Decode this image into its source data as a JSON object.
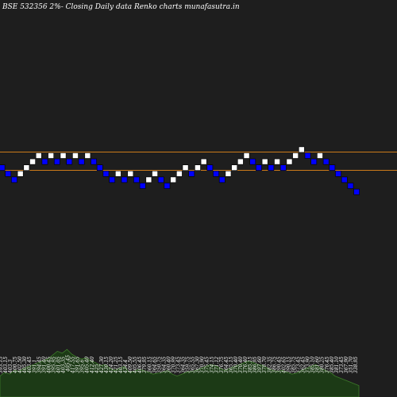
{
  "title": "BSE 532356  2%-  Closing Daily data  Renko  charts munafasutra.in",
  "colors": {
    "background": "#1e1e1e",
    "up_brick": "#ffffff",
    "down_brick": "#0000ff",
    "brick_border": "#000000",
    "level_line": "#cc7a1a",
    "volume_fill": "#1c3a16",
    "volume_stroke": "#3d7a2a",
    "text": "#ffffff"
  },
  "chart_data": {
    "type": "renko",
    "title": "BSE 532356  2%-  Closing Daily data  Renko  charts munafasutra.in",
    "brick_size": "2%",
    "levels": [
      17,
      22
    ],
    "bricks": [
      {
        "dir": "down",
        "level": 16
      },
      {
        "dir": "down",
        "level": 15
      },
      {
        "dir": "down",
        "level": 14
      },
      {
        "dir": "up",
        "level": 15
      },
      {
        "dir": "up",
        "level": 16
      },
      {
        "dir": "up",
        "level": 17
      },
      {
        "dir": "up",
        "level": 18
      },
      {
        "dir": "down",
        "level": 17
      },
      {
        "dir": "up",
        "level": 18
      },
      {
        "dir": "down",
        "level": 17
      },
      {
        "dir": "up",
        "level": 18
      },
      {
        "dir": "down",
        "level": 17
      },
      {
        "dir": "up",
        "level": 18
      },
      {
        "dir": "down",
        "level": 17
      },
      {
        "dir": "up",
        "level": 18
      },
      {
        "dir": "down",
        "level": 17
      },
      {
        "dir": "down",
        "level": 16
      },
      {
        "dir": "down",
        "level": 15
      },
      {
        "dir": "down",
        "level": 14
      },
      {
        "dir": "up",
        "level": 15
      },
      {
        "dir": "down",
        "level": 14
      },
      {
        "dir": "up",
        "level": 15
      },
      {
        "dir": "down",
        "level": 14
      },
      {
        "dir": "down",
        "level": 13
      },
      {
        "dir": "up",
        "level": 14
      },
      {
        "dir": "up",
        "level": 15
      },
      {
        "dir": "down",
        "level": 14
      },
      {
        "dir": "down",
        "level": 13
      },
      {
        "dir": "up",
        "level": 14
      },
      {
        "dir": "up",
        "level": 15
      },
      {
        "dir": "up",
        "level": 16
      },
      {
        "dir": "down",
        "level": 15
      },
      {
        "dir": "up",
        "level": 16
      },
      {
        "dir": "up",
        "level": 17
      },
      {
        "dir": "down",
        "level": 16
      },
      {
        "dir": "down",
        "level": 15
      },
      {
        "dir": "down",
        "level": 14
      },
      {
        "dir": "up",
        "level": 15
      },
      {
        "dir": "up",
        "level": 16
      },
      {
        "dir": "up",
        "level": 17
      },
      {
        "dir": "up",
        "level": 18
      },
      {
        "dir": "down",
        "level": 17
      },
      {
        "dir": "down",
        "level": 16
      },
      {
        "dir": "up",
        "level": 17
      },
      {
        "dir": "down",
        "level": 16
      },
      {
        "dir": "up",
        "level": 17
      },
      {
        "dir": "down",
        "level": 16
      },
      {
        "dir": "up",
        "level": 17
      },
      {
        "dir": "up",
        "level": 18
      },
      {
        "dir": "up",
        "level": 19
      },
      {
        "dir": "down",
        "level": 18
      },
      {
        "dir": "down",
        "level": 17
      },
      {
        "dir": "up",
        "level": 18
      },
      {
        "dir": "down",
        "level": 17
      },
      {
        "dir": "down",
        "level": 16
      },
      {
        "dir": "down",
        "level": 15
      },
      {
        "dir": "down",
        "level": 14
      },
      {
        "dir": "down",
        "level": 13
      },
      {
        "dir": "down",
        "level": 12
      }
    ],
    "volume": [
      22,
      26,
      24,
      28,
      27,
      30,
      32,
      34,
      36,
      38,
      40,
      44,
      48,
      46,
      50,
      45,
      42,
      40,
      41,
      38,
      36,
      33,
      34,
      30,
      28,
      30,
      32,
      26,
      27,
      29,
      28,
      26,
      24,
      25,
      26,
      28,
      24,
      22,
      24,
      26,
      27,
      28,
      30,
      32,
      34,
      33,
      30,
      28,
      30,
      32,
      34,
      36,
      38,
      36,
      34,
      33,
      30,
      28,
      27,
      28,
      26,
      24,
      25,
      28,
      30,
      32,
      34,
      30,
      28,
      26,
      22,
      20,
      18,
      16,
      14,
      12
    ],
    "price_labels": [
      "393.15",
      "403.15",
      "403.3",
      "400.75",
      "402.50",
      "405.30",
      "403.45",
      "391.1",
      "394.45",
      "391.40",
      "400.45",
      "395.95",
      "401.05",
      "403.35",
      "405.45",
      "417.55",
      "391.65",
      "395.6",
      "405.40",
      "412.40",
      "425",
      "427.30",
      "430.15",
      "424.20",
      "421.25",
      "403.15",
      "434.4",
      "409.50",
      "405.55",
      "406.45",
      "379.95",
      "360.15",
      "364.65",
      "350.75",
      "364.35",
      "360.40",
      "370.99",
      "373.45",
      "364.35",
      "359.75",
      "365.55",
      "367.30",
      "370.90",
      "375.45",
      "374.15",
      "371.12",
      "376.75",
      "364.45",
      "365.15",
      "370.40",
      "370.40",
      "376.40",
      "385.15",
      "386.95",
      "397.60",
      "378.70",
      "382.35",
      "386.75",
      "390.45",
      "402.65",
      "390.15",
      "385.75",
      "373.45",
      "362.45",
      "373.90",
      "385.10",
      "381.60",
      "380.25",
      "376.45",
      "385.40",
      "381.10",
      "373.45",
      "367.90",
      "351.70",
      "338.95"
    ]
  }
}
